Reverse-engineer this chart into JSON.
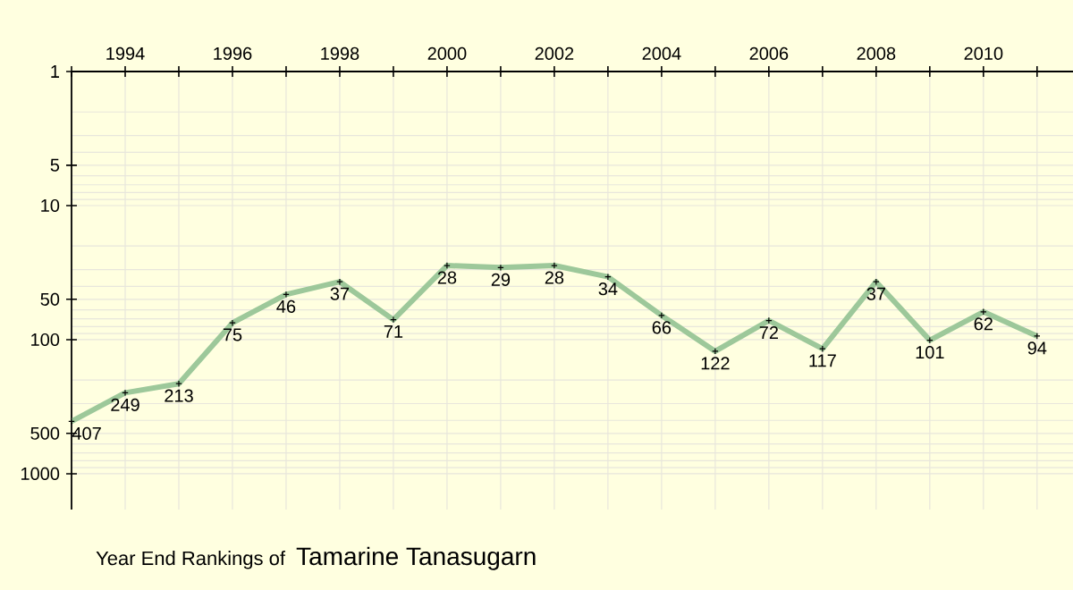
{
  "chart_data": {
    "type": "line",
    "title": "Year End Rankings of",
    "subtitle": "Tamarine Tanasugarn",
    "x": [
      1993,
      1994,
      1995,
      1996,
      1997,
      1998,
      1999,
      2000,
      2001,
      2002,
      2003,
      2004,
      2005,
      2006,
      2007,
      2008,
      2009,
      2010,
      2011
    ],
    "series": [
      {
        "color": "#9dc89a",
        "values": [
          407,
          249,
          213,
          75,
          46,
          37,
          71,
          28,
          29,
          28,
          34,
          66,
          122,
          72,
          117,
          37,
          101,
          62,
          94
        ]
      }
    ],
    "data_labels": true,
    "marker": "cross",
    "line_style": "solid",
    "log": "y",
    "grid": true,
    "xlim": [
      1993,
      2011.67
    ],
    "xticks": [
      {
        "value": 1993,
        "label": null
      },
      1994,
      {
        "value": 1995,
        "label": null
      },
      1996,
      {
        "value": 1997,
        "label": null
      },
      1998,
      {
        "value": 1999,
        "label": null
      },
      2000,
      {
        "value": 2001,
        "label": null
      },
      2002,
      {
        "value": 2003,
        "label": null
      },
      2004,
      {
        "value": 2005,
        "label": null
      },
      2006,
      {
        "value": 2007,
        "label": null
      },
      2008,
      {
        "value": 2009,
        "label": null
      },
      2010,
      {
        "value": 2011,
        "label": null
      }
    ],
    "ylim": [
      1850,
      1
    ],
    "yticks": [
      1,
      5,
      10,
      50,
      100,
      500,
      1000
    ]
  }
}
